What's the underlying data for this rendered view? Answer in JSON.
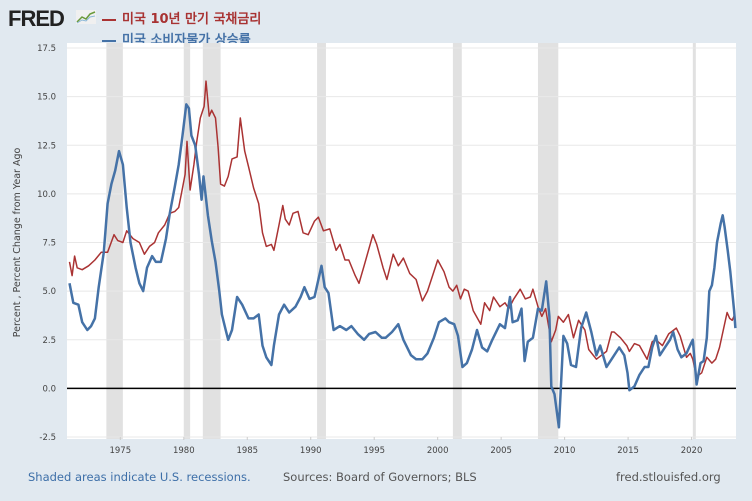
{
  "header": {
    "logo": "FRED",
    "logo_icon": "chart-line-icon"
  },
  "chart_data": {
    "type": "line",
    "title": "",
    "xlabel": "",
    "ylabel": "Percent , Percent Change from Year Ago",
    "xlim": [
      1970.8,
      2023.5
    ],
    "ylim": [
      -2.5,
      17.5
    ],
    "grid": true,
    "legend_placement": "top-left",
    "yticks": [
      "-2.5",
      "0.0",
      "2.5",
      "5.0",
      "7.5",
      "10.0",
      "12.5",
      "15.0",
      "17.5"
    ],
    "xticks": [
      "1975",
      "1980",
      "1985",
      "1990",
      "1995",
      "2000",
      "2005",
      "2010",
      "2015",
      "2020"
    ],
    "recessions": [
      [
        1973.9,
        1975.2
      ],
      [
        1980.0,
        1980.5
      ],
      [
        1981.5,
        1982.9
      ],
      [
        1990.5,
        1991.2
      ],
      [
        2001.2,
        2001.9
      ],
      [
        2007.9,
        2009.5
      ],
      [
        2020.1,
        2020.3
      ]
    ],
    "recession_color": "#e1e1e1",
    "series": [
      {
        "name": "미국 10년 만기 국채금리",
        "color": "#aa3333",
        "points": [
          [
            1971,
            6.5
          ],
          [
            1971.2,
            5.8
          ],
          [
            1971.4,
            6.8
          ],
          [
            1971.6,
            6.2
          ],
          [
            1972,
            6.1
          ],
          [
            1972.5,
            6.3
          ],
          [
            1973,
            6.6
          ],
          [
            1973.5,
            7.0
          ],
          [
            1974,
            7.0
          ],
          [
            1974.5,
            7.9
          ],
          [
            1974.8,
            7.6
          ],
          [
            1975.2,
            7.5
          ],
          [
            1975.5,
            8.1
          ],
          [
            1976,
            7.7
          ],
          [
            1976.5,
            7.5
          ],
          [
            1976.9,
            6.9
          ],
          [
            1977.3,
            7.3
          ],
          [
            1977.7,
            7.5
          ],
          [
            1978,
            8.0
          ],
          [
            1978.5,
            8.4
          ],
          [
            1978.9,
            9.0
          ],
          [
            1979.3,
            9.1
          ],
          [
            1979.6,
            9.3
          ],
          [
            1979.9,
            10.3
          ],
          [
            1980.1,
            11.0
          ],
          [
            1980.25,
            12.7
          ],
          [
            1980.5,
            10.2
          ],
          [
            1980.8,
            11.5
          ],
          [
            1981,
            12.6
          ],
          [
            1981.3,
            13.9
          ],
          [
            1981.6,
            14.5
          ],
          [
            1981.75,
            15.8
          ],
          [
            1982,
            14.0
          ],
          [
            1982.2,
            14.3
          ],
          [
            1982.5,
            13.9
          ],
          [
            1982.7,
            12.4
          ],
          [
            1982.9,
            10.5
          ],
          [
            1983.2,
            10.4
          ],
          [
            1983.5,
            10.9
          ],
          [
            1983.8,
            11.8
          ],
          [
            1984.2,
            11.9
          ],
          [
            1984.45,
            13.9
          ],
          [
            1984.8,
            12.2
          ],
          [
            1985.1,
            11.4
          ],
          [
            1985.5,
            10.3
          ],
          [
            1985.9,
            9.5
          ],
          [
            1986.2,
            8.0
          ],
          [
            1986.5,
            7.3
          ],
          [
            1986.9,
            7.4
          ],
          [
            1987.1,
            7.1
          ],
          [
            1987.5,
            8.4
          ],
          [
            1987.8,
            9.4
          ],
          [
            1988,
            8.7
          ],
          [
            1988.3,
            8.4
          ],
          [
            1988.6,
            9.0
          ],
          [
            1989,
            9.1
          ],
          [
            1989.4,
            8.0
          ],
          [
            1989.8,
            7.9
          ],
          [
            1990.3,
            8.6
          ],
          [
            1990.6,
            8.8
          ],
          [
            1991,
            8.1
          ],
          [
            1991.5,
            8.2
          ],
          [
            1992,
            7.1
          ],
          [
            1992.3,
            7.4
          ],
          [
            1992.7,
            6.6
          ],
          [
            1993,
            6.6
          ],
          [
            1993.5,
            5.8
          ],
          [
            1993.8,
            5.4
          ],
          [
            1994.2,
            6.3
          ],
          [
            1994.9,
            7.9
          ],
          [
            1995.2,
            7.4
          ],
          [
            1995.7,
            6.2
          ],
          [
            1996,
            5.6
          ],
          [
            1996.5,
            6.9
          ],
          [
            1996.9,
            6.3
          ],
          [
            1997.3,
            6.7
          ],
          [
            1997.8,
            5.9
          ],
          [
            1998.3,
            5.6
          ],
          [
            1998.8,
            4.5
          ],
          [
            1999.2,
            5.0
          ],
          [
            1999.6,
            5.8
          ],
          [
            2000,
            6.6
          ],
          [
            2000.5,
            6.0
          ],
          [
            2000.9,
            5.2
          ],
          [
            2001.2,
            5.0
          ],
          [
            2001.5,
            5.3
          ],
          [
            2001.8,
            4.6
          ],
          [
            2002.1,
            5.1
          ],
          [
            2002.4,
            5.0
          ],
          [
            2002.8,
            4.0
          ],
          [
            2003.4,
            3.3
          ],
          [
            2003.7,
            4.4
          ],
          [
            2004.1,
            4.0
          ],
          [
            2004.4,
            4.7
          ],
          [
            2004.9,
            4.2
          ],
          [
            2005.3,
            4.4
          ],
          [
            2005.6,
            4.1
          ],
          [
            2006,
            4.6
          ],
          [
            2006.5,
            5.1
          ],
          [
            2006.9,
            4.6
          ],
          [
            2007.3,
            4.7
          ],
          [
            2007.5,
            5.1
          ],
          [
            2007.9,
            4.2
          ],
          [
            2008.2,
            3.7
          ],
          [
            2008.5,
            4.1
          ],
          [
            2008.95,
            2.4
          ],
          [
            2009.3,
            3.0
          ],
          [
            2009.5,
            3.7
          ],
          [
            2009.9,
            3.4
          ],
          [
            2010.3,
            3.8
          ],
          [
            2010.7,
            2.6
          ],
          [
            2011.1,
            3.5
          ],
          [
            2011.6,
            3.0
          ],
          [
            2011.9,
            2.0
          ],
          [
            2012.5,
            1.5
          ],
          [
            2012.9,
            1.7
          ],
          [
            2013.3,
            1.9
          ],
          [
            2013.7,
            2.9
          ],
          [
            2013.9,
            2.9
          ],
          [
            2014.4,
            2.6
          ],
          [
            2014.9,
            2.2
          ],
          [
            2015.1,
            1.9
          ],
          [
            2015.5,
            2.3
          ],
          [
            2015.9,
            2.2
          ],
          [
            2016.5,
            1.5
          ],
          [
            2016.9,
            2.4
          ],
          [
            2017.2,
            2.5
          ],
          [
            2017.7,
            2.2
          ],
          [
            2018.2,
            2.8
          ],
          [
            2018.8,
            3.1
          ],
          [
            2019.1,
            2.7
          ],
          [
            2019.6,
            1.6
          ],
          [
            2019.9,
            1.8
          ],
          [
            2020.1,
            1.5
          ],
          [
            2020.4,
            0.6
          ],
          [
            2020.8,
            0.8
          ],
          [
            2021.2,
            1.6
          ],
          [
            2021.6,
            1.3
          ],
          [
            2021.9,
            1.5
          ],
          [
            2022.2,
            2.1
          ],
          [
            2022.5,
            3.0
          ],
          [
            2022.8,
            3.9
          ],
          [
            2023.0,
            3.6
          ],
          [
            2023.2,
            3.5
          ],
          [
            2023.4,
            3.8
          ]
        ]
      },
      {
        "name": "미국 소비자물가 상승률",
        "color": "#4572a7",
        "points": [
          [
            1971,
            5.4
          ],
          [
            1971.3,
            4.4
          ],
          [
            1971.7,
            4.3
          ],
          [
            1972,
            3.4
          ],
          [
            1972.4,
            3.0
          ],
          [
            1972.7,
            3.2
          ],
          [
            1973,
            3.6
          ],
          [
            1973.3,
            5.2
          ],
          [
            1973.7,
            7.0
          ],
          [
            1974,
            9.5
          ],
          [
            1974.3,
            10.5
          ],
          [
            1974.6,
            11.2
          ],
          [
            1974.9,
            12.2
          ],
          [
            1975.2,
            11.5
          ],
          [
            1975.5,
            9.3
          ],
          [
            1975.8,
            7.5
          ],
          [
            1976.2,
            6.2
          ],
          [
            1976.5,
            5.4
          ],
          [
            1976.8,
            5.0
          ],
          [
            1977.1,
            6.2
          ],
          [
            1977.5,
            6.8
          ],
          [
            1977.8,
            6.5
          ],
          [
            1978.2,
            6.5
          ],
          [
            1978.6,
            7.7
          ],
          [
            1978.9,
            9.0
          ],
          [
            1979.3,
            10.4
          ],
          [
            1979.6,
            11.5
          ],
          [
            1979.9,
            13.0
          ],
          [
            1980.2,
            14.6
          ],
          [
            1980.4,
            14.4
          ],
          [
            1980.6,
            13.0
          ],
          [
            1980.9,
            12.5
          ],
          [
            1981.2,
            11.0
          ],
          [
            1981.4,
            9.7
          ],
          [
            1981.55,
            10.9
          ],
          [
            1981.9,
            8.9
          ],
          [
            1982.2,
            7.6
          ],
          [
            1982.5,
            6.5
          ],
          [
            1982.8,
            5.0
          ],
          [
            1983,
            3.8
          ],
          [
            1983.3,
            3.0
          ],
          [
            1983.5,
            2.5
          ],
          [
            1983.8,
            3.0
          ],
          [
            1984.2,
            4.7
          ],
          [
            1984.6,
            4.3
          ],
          [
            1985.1,
            3.6
          ],
          [
            1985.5,
            3.6
          ],
          [
            1985.9,
            3.8
          ],
          [
            1986.2,
            2.2
          ],
          [
            1986.5,
            1.6
          ],
          [
            1986.9,
            1.2
          ],
          [
            1987.1,
            2.2
          ],
          [
            1987.5,
            3.8
          ],
          [
            1987.9,
            4.3
          ],
          [
            1988.3,
            3.9
          ],
          [
            1988.8,
            4.2
          ],
          [
            1989.2,
            4.7
          ],
          [
            1989.5,
            5.2
          ],
          [
            1989.9,
            4.6
          ],
          [
            1990.3,
            4.7
          ],
          [
            1990.6,
            5.6
          ],
          [
            1990.85,
            6.3
          ],
          [
            1991.1,
            5.2
          ],
          [
            1991.4,
            4.9
          ],
          [
            1991.8,
            3.0
          ],
          [
            1992.3,
            3.2
          ],
          [
            1992.8,
            3.0
          ],
          [
            1993.2,
            3.2
          ],
          [
            1993.7,
            2.8
          ],
          [
            1994.2,
            2.5
          ],
          [
            1994.6,
            2.8
          ],
          [
            1995.1,
            2.9
          ],
          [
            1995.6,
            2.6
          ],
          [
            1995.9,
            2.6
          ],
          [
            1996.4,
            2.9
          ],
          [
            1996.9,
            3.3
          ],
          [
            1997.3,
            2.5
          ],
          [
            1997.9,
            1.7
          ],
          [
            1998.3,
            1.5
          ],
          [
            1998.8,
            1.5
          ],
          [
            1999.2,
            1.8
          ],
          [
            1999.7,
            2.6
          ],
          [
            2000.1,
            3.4
          ],
          [
            2000.6,
            3.6
          ],
          [
            2000.9,
            3.4
          ],
          [
            2001.3,
            3.3
          ],
          [
            2001.6,
            2.7
          ],
          [
            2001.95,
            1.1
          ],
          [
            2002.3,
            1.3
          ],
          [
            2002.7,
            2.0
          ],
          [
            2003.1,
            3.0
          ],
          [
            2003.5,
            2.1
          ],
          [
            2003.9,
            1.9
          ],
          [
            2004.3,
            2.5
          ],
          [
            2004.9,
            3.3
          ],
          [
            2005.3,
            3.1
          ],
          [
            2005.7,
            4.7
          ],
          [
            2005.9,
            3.4
          ],
          [
            2006.3,
            3.5
          ],
          [
            2006.6,
            4.1
          ],
          [
            2006.85,
            1.4
          ],
          [
            2007.1,
            2.4
          ],
          [
            2007.5,
            2.6
          ],
          [
            2007.9,
            4.1
          ],
          [
            2008.2,
            4.0
          ],
          [
            2008.55,
            5.5
          ],
          [
            2008.8,
            3.7
          ],
          [
            2008.95,
            0.1
          ],
          [
            2009.2,
            -0.3
          ],
          [
            2009.55,
            -2.0
          ],
          [
            2009.9,
            2.7
          ],
          [
            2010.2,
            2.3
          ],
          [
            2010.5,
            1.2
          ],
          [
            2010.9,
            1.1
          ],
          [
            2011.3,
            3.1
          ],
          [
            2011.7,
            3.9
          ],
          [
            2012.1,
            2.9
          ],
          [
            2012.5,
            1.7
          ],
          [
            2012.8,
            2.2
          ],
          [
            2013.3,
            1.1
          ],
          [
            2013.7,
            1.5
          ],
          [
            2014.3,
            2.1
          ],
          [
            2014.7,
            1.7
          ],
          [
            2014.95,
            0.8
          ],
          [
            2015.1,
            -0.1
          ],
          [
            2015.5,
            0.1
          ],
          [
            2015.9,
            0.7
          ],
          [
            2016.3,
            1.1
          ],
          [
            2016.6,
            1.1
          ],
          [
            2016.9,
            2.1
          ],
          [
            2017.2,
            2.7
          ],
          [
            2017.5,
            1.7
          ],
          [
            2017.9,
            2.1
          ],
          [
            2018.3,
            2.5
          ],
          [
            2018.55,
            2.9
          ],
          [
            2018.9,
            2.0
          ],
          [
            2019.2,
            1.6
          ],
          [
            2019.6,
            1.8
          ],
          [
            2019.95,
            2.3
          ],
          [
            2020.1,
            2.5
          ],
          [
            2020.4,
            0.2
          ],
          [
            2020.7,
            1.3
          ],
          [
            2020.95,
            1.4
          ],
          [
            2021.2,
            2.6
          ],
          [
            2021.4,
            5.0
          ],
          [
            2021.6,
            5.3
          ],
          [
            2021.8,
            6.2
          ],
          [
            2022.0,
            7.5
          ],
          [
            2022.3,
            8.5
          ],
          [
            2022.45,
            8.9
          ],
          [
            2022.6,
            8.3
          ],
          [
            2022.85,
            7.1
          ],
          [
            2023.05,
            6.0
          ],
          [
            2023.2,
            5.0
          ],
          [
            2023.35,
            4.0
          ],
          [
            2023.45,
            3.1
          ]
        ]
      }
    ]
  },
  "footer": {
    "recession_note": "Shaded areas indicate U.S. recessions.",
    "sources": "Sources: Board of Governors; BLS",
    "site": "fred.stlouisfed.org"
  }
}
